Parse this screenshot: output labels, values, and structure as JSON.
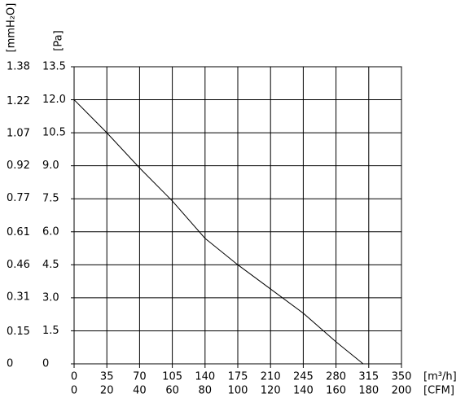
{
  "chart_data": {
    "type": "line",
    "y_label": "[Pa]",
    "y2_label": "[mmH₂O]",
    "x_label": "[m³/h]",
    "x2_label": "[CFM]",
    "x": [
      0,
      35,
      70,
      105,
      140,
      175,
      210,
      245,
      280,
      309
    ],
    "values": [
      12.0,
      10.5,
      8.9,
      7.4,
      5.7,
      4.5,
      3.4,
      2.3,
      1.0,
      0
    ],
    "color": "#000000",
    "xlim": [
      0,
      350
    ],
    "xticks": [
      0,
      35,
      70,
      105,
      140,
      175,
      210,
      245,
      280,
      315,
      350
    ],
    "x2lim": [
      0,
      200
    ],
    "x2ticks": [
      0,
      20,
      40,
      60,
      80,
      100,
      120,
      140,
      160,
      180,
      200
    ],
    "ylim": [
      0,
      13.5
    ],
    "yticks": [
      0,
      1.5,
      {
        "value": 3,
        "label": "3.0"
      },
      4.5,
      {
        "value": 6,
        "label": "6.0"
      },
      7.5,
      {
        "value": 9,
        "label": "9.0"
      },
      10.5,
      {
        "value": 12,
        "label": "12.0"
      },
      13.5
    ],
    "y2lim": [
      0,
      1.38
    ],
    "y2ticks": [
      0,
      0.15,
      0.31,
      0.46,
      0.61,
      0.77,
      0.92,
      1.07,
      1.22,
      1.38
    ],
    "grid": true
  }
}
